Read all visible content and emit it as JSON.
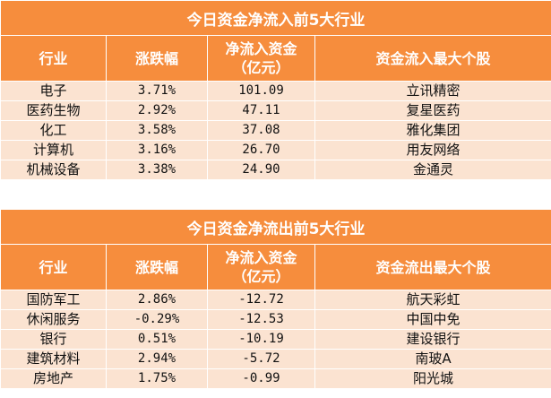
{
  "inflow": {
    "title": "今日资金净流入前5大行业",
    "headers": [
      "行业",
      "涨跌幅",
      "净流入资金\n（亿元）",
      "资金流入最大个股"
    ],
    "rows": [
      [
        "电子",
        "3.71%",
        "101.09",
        "立讯精密"
      ],
      [
        "医药生物",
        "2.92%",
        "47.11",
        "复星医药"
      ],
      [
        "化工",
        "3.58%",
        "37.08",
        "雅化集团"
      ],
      [
        "计算机",
        "3.16%",
        "26.70",
        "用友网络"
      ],
      [
        "机械设备",
        "3.38%",
        "24.90",
        "金通灵"
      ]
    ]
  },
  "outflow": {
    "title": "今日资金净流出前5大行业",
    "headers": [
      "行业",
      "涨跌幅",
      "净流入资金\n（亿元）",
      "资金流出最大个股"
    ],
    "rows": [
      [
        "国防军工",
        "2.86%",
        "-12.72",
        "航天彩虹"
      ],
      [
        "休闲服务",
        "-0.29%",
        "-12.53",
        "中国中免"
      ],
      [
        "银行",
        "0.51%",
        "-10.19",
        "建设银行"
      ],
      [
        "建筑材料",
        "2.94%",
        "-5.72",
        "南玻A"
      ],
      [
        "房地产",
        "1.75%",
        "-0.99",
        "阳光城"
      ]
    ]
  }
}
